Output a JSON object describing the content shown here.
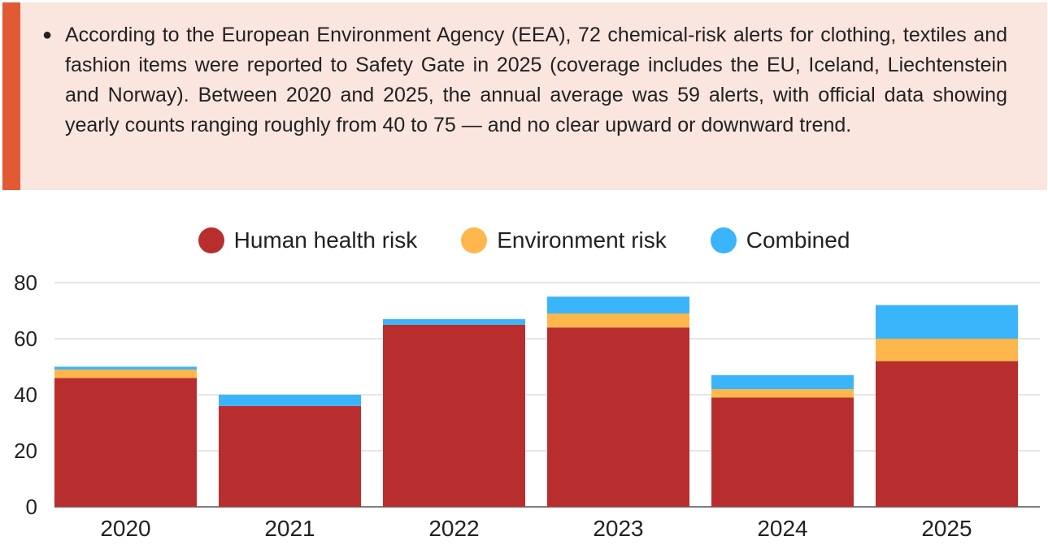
{
  "note": {
    "text": "According to the European Environment Agency (EEA), 72 chemical-risk alerts for clothing, textiles and fashion items were reported to Safety Gate in 2025 (coverage includes the EU, Iceland, Liechtenstein and Norway). Between 2020 and 2025, the annual average was 59 alerts, with official data showing yearly counts ranging roughly from 40 to 75 — and no clear upward or downward trend.",
    "accent_color": "#e25a33",
    "background_color": "#fae5df"
  },
  "chart_data": {
    "type": "bar",
    "stacked": true,
    "categories": [
      "2020",
      "2021",
      "2022",
      "2023",
      "2024",
      "2025"
    ],
    "series": [
      {
        "name": "Human health risk",
        "color": "#b82e2e",
        "values": [
          46,
          36,
          65,
          64,
          39,
          52
        ]
      },
      {
        "name": "Environment risk",
        "color": "#ffb74d",
        "values": [
          3,
          0,
          0,
          5,
          3,
          8
        ]
      },
      {
        "name": "Combined",
        "color": "#3ab4fb",
        "values": [
          1,
          4,
          2,
          6,
          5,
          12
        ]
      }
    ],
    "ylim": [
      0,
      80
    ],
    "yticks": [
      "0",
      "20",
      "40",
      "60",
      "80"
    ],
    "grid": true,
    "legend_position": "top-center"
  }
}
